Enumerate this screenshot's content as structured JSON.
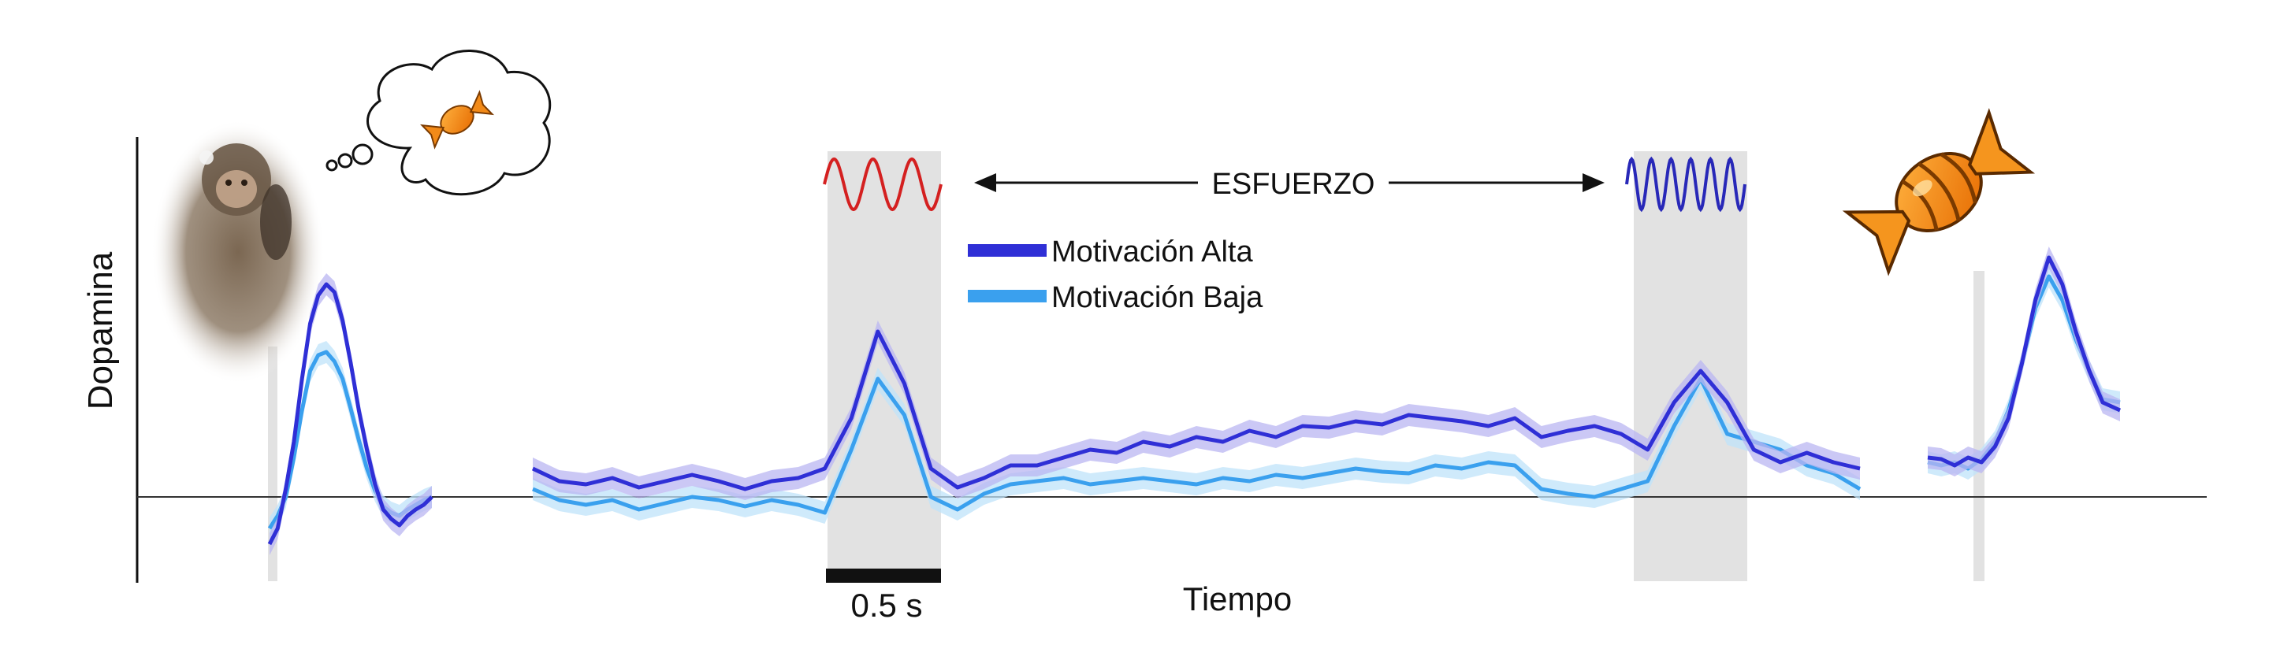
{
  "chart_data": {
    "type": "line",
    "title": "",
    "ylabel": "Dopamina",
    "xlabel": "Tiempo",
    "ylim": [
      -0.35,
      1.9
    ],
    "grid": false,
    "legend_position": "top-center",
    "legend": [
      {
        "name": "Motivación Alta",
        "color": "#2f2fd6"
      },
      {
        "name": "Motivación Baja",
        "color": "#3aa0ee"
      }
    ],
    "annotations": {
      "effort_label": "ESFUERZO",
      "scale_bar_label": "0.5 s"
    },
    "icons": {
      "monkey": "monkey-photo",
      "thought_bubble": "thought-bubble-candy-icon",
      "reward": "candy-icon",
      "stim_low_effort": "sine-wave-icon",
      "stim_high_effort": "fast-sine-wave-icon"
    },
    "colors": {
      "alta": "#2f2fd6",
      "baja": "#3aa0ee",
      "alta_band": "#b9b6f2",
      "baja_band": "#bfe3fa",
      "stimulus_wave_1": "#d42020",
      "stimulus_wave_2": "#2828b8",
      "shade": "#e2e2e2",
      "candy": "#f28a18"
    },
    "segments": [
      {
        "name": "cue",
        "x": [
          0,
          0.05,
          0.1,
          0.15,
          0.2,
          0.25,
          0.3,
          0.35,
          0.4,
          0.45,
          0.5,
          0.55,
          0.6,
          0.65,
          0.7,
          0.75,
          0.8,
          0.85,
          0.9,
          0.95,
          1.0
        ],
        "series": [
          {
            "name": "Motivación Alta",
            "values": [
              -0.3,
              -0.2,
              0.05,
              0.35,
              0.75,
              1.1,
              1.28,
              1.35,
              1.3,
              1.12,
              0.85,
              0.55,
              0.3,
              0.08,
              -0.08,
              -0.14,
              -0.18,
              -0.12,
              -0.08,
              -0.05,
              0.0
            ]
          },
          {
            "name": "Motivación Baja",
            "values": [
              -0.2,
              -0.12,
              0.0,
              0.25,
              0.55,
              0.8,
              0.9,
              0.92,
              0.86,
              0.75,
              0.56,
              0.36,
              0.18,
              0.04,
              -0.06,
              -0.1,
              -0.12,
              -0.08,
              -0.05,
              -0.02,
              0.0
            ]
          }
        ]
      },
      {
        "name": "effort",
        "x": [
          0,
          0.02,
          0.04,
          0.06,
          0.08,
          0.1,
          0.12,
          0.14,
          0.16,
          0.18,
          0.2,
          0.22,
          0.24,
          0.26,
          0.28,
          0.3,
          0.32,
          0.34,
          0.36,
          0.38,
          0.4,
          0.42,
          0.44,
          0.46,
          0.48,
          0.5,
          0.52,
          0.54,
          0.56,
          0.58,
          0.6,
          0.62,
          0.64,
          0.66,
          0.68,
          0.7,
          0.72,
          0.74,
          0.76,
          0.78,
          0.8,
          0.82,
          0.84,
          0.86,
          0.88,
          0.9,
          0.92,
          0.94,
          0.96,
          0.98,
          1.0
        ],
        "series": [
          {
            "name": "Motivación Alta",
            "values": [
              0.18,
              0.1,
              0.08,
              0.12,
              0.06,
              0.1,
              0.14,
              0.1,
              0.05,
              0.1,
              0.12,
              0.18,
              0.5,
              1.05,
              0.72,
              0.18,
              0.06,
              0.12,
              0.2,
              0.2,
              0.25,
              0.3,
              0.28,
              0.35,
              0.32,
              0.38,
              0.35,
              0.42,
              0.38,
              0.45,
              0.44,
              0.48,
              0.46,
              0.52,
              0.5,
              0.48,
              0.45,
              0.5,
              0.38,
              0.42,
              0.45,
              0.4,
              0.3,
              0.6,
              0.8,
              0.6,
              0.3,
              0.22,
              0.28,
              0.22,
              0.18
            ]
          },
          {
            "name": "Motivación Baja",
            "values": [
              0.05,
              -0.02,
              -0.05,
              -0.02,
              -0.08,
              -0.04,
              0.0,
              -0.02,
              -0.06,
              -0.02,
              -0.05,
              -0.1,
              0.3,
              0.75,
              0.52,
              0.0,
              -0.08,
              0.02,
              0.08,
              0.1,
              0.12,
              0.08,
              0.1,
              0.12,
              0.1,
              0.08,
              0.12,
              0.1,
              0.14,
              0.12,
              0.15,
              0.18,
              0.16,
              0.15,
              0.2,
              0.18,
              0.22,
              0.2,
              0.05,
              0.02,
              0.0,
              0.05,
              0.1,
              0.45,
              0.75,
              0.4,
              0.35,
              0.3,
              0.2,
              0.15,
              0.05
            ]
          }
        ]
      },
      {
        "name": "reward",
        "x": [
          0,
          0.07,
          0.14,
          0.21,
          0.28,
          0.35,
          0.42,
          0.49,
          0.56,
          0.63,
          0.7,
          0.77,
          0.84,
          0.91,
          1.0
        ],
        "series": [
          {
            "name": "Motivación Alta",
            "values": [
              0.25,
              0.24,
              0.2,
              0.25,
              0.22,
              0.32,
              0.5,
              0.85,
              1.25,
              1.52,
              1.35,
              1.05,
              0.8,
              0.6,
              0.55
            ]
          },
          {
            "name": "Motivación Baja",
            "values": [
              0.22,
              0.2,
              0.22,
              0.18,
              0.24,
              0.35,
              0.55,
              0.85,
              1.2,
              1.4,
              1.25,
              1.0,
              0.8,
              0.62,
              0.6
            ]
          }
        ]
      }
    ]
  }
}
